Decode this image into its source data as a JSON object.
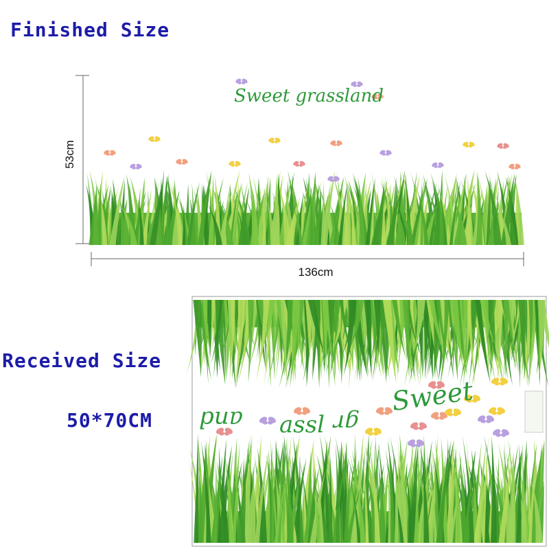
{
  "finished": {
    "title": "Finished Size",
    "height": "53cm",
    "width": "136cm",
    "design_text": "Sweet grassland"
  },
  "received": {
    "title": "Received Size",
    "size": "50*70CM",
    "sheet_texts": [
      "Sweet",
      "and",
      "assl",
      "gr"
    ]
  }
}
